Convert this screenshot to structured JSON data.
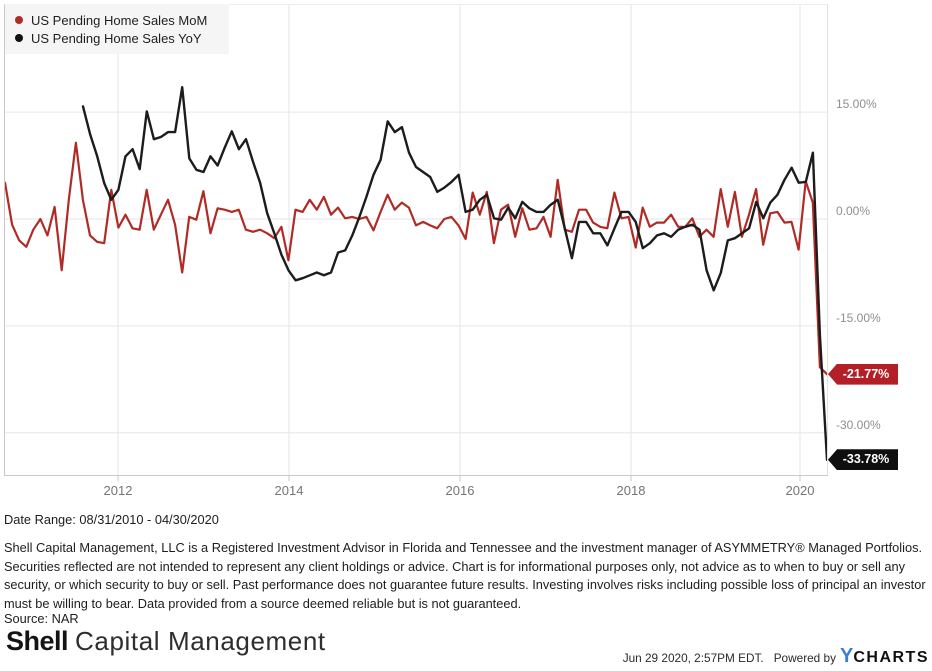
{
  "legend": {
    "items": [
      {
        "label": "US Pending Home Sales MoM",
        "color": "#b02b26"
      },
      {
        "label": "US Pending Home Sales YoY",
        "color": "#111111"
      }
    ]
  },
  "chart_data": {
    "type": "line",
    "title": "",
    "x_ticks": [
      "2012",
      "2014",
      "2016",
      "2018",
      "2020"
    ],
    "y_ticks": [
      "15.00%",
      "0.00%",
      "-15.00%",
      "-30.00%"
    ],
    "y_tick_values": [
      15,
      0,
      -15,
      -30
    ],
    "ylim": [
      -36,
      30
    ],
    "x_range": "08/31/2010 - 04/30/2020",
    "frequency": "monthly",
    "grid": true,
    "legend_position": "top-left",
    "series": [
      {
        "name": "US Pending Home Sales MoM",
        "color": "#b02b26",
        "start": "2010-08",
        "end": "2020-04",
        "values": [
          5.1,
          -0.8,
          -3.0,
          -3.9,
          -1.5,
          0.0,
          -2.3,
          1.7,
          -7.2,
          2.7,
          10.7,
          2.7,
          -2.3,
          -3.2,
          -3.4,
          4.1,
          -1.2,
          0.6,
          -1.3,
          -1.5,
          4.1,
          -1.5,
          0.6,
          2.7,
          -0.8,
          -7.5,
          0.3,
          -0.1,
          3.9,
          -2.0,
          1.5,
          1.3,
          1.0,
          1.3,
          -1.5,
          -1.8,
          -1.5,
          -2.0,
          -2.7,
          -1.1,
          -5.8,
          1.3,
          1.0,
          2.7,
          1.3,
          3.1,
          0.6,
          1.6,
          0.1,
          0.3,
          0.0,
          0.3,
          -1.6,
          1.0,
          3.4,
          1.3,
          2.3,
          1.6,
          -0.9,
          -0.4,
          -0.9,
          -1.3,
          0.0,
          0.3,
          -0.9,
          -2.8,
          3.7,
          0.6,
          3.8,
          -3.4,
          1.3,
          2.0,
          -2.5,
          1.5,
          -1.5,
          -1.3,
          0.3,
          -2.5,
          5.5,
          -1.5,
          -1.8,
          1.3,
          1.3,
          -0.5,
          -1.1,
          -1.3,
          3.7,
          0.1,
          0.3,
          -4.0,
          1.6,
          -1.1,
          -0.5,
          -0.5,
          0.6,
          -1.1,
          -1.1,
          0.1,
          -2.5,
          -1.5,
          -2.5,
          4.2,
          -1.1,
          3.8,
          -2.5,
          0.6,
          4.2,
          -3.6,
          0.8,
          1.0,
          -0.5,
          -0.4,
          -4.3,
          5.3,
          2.3,
          -20.8,
          -21.77
        ]
      },
      {
        "name": "US Pending Home Sales YoY",
        "color": "#1c1c1c",
        "start": "2011-07",
        "end": "2020-04",
        "values": [
          15.8,
          11.9,
          8.8,
          5.0,
          2.7,
          4.1,
          8.8,
          9.8,
          7.0,
          15.1,
          11.2,
          11.5,
          12.2,
          12.2,
          18.5,
          8.5,
          6.9,
          6.6,
          8.8,
          7.5,
          10.0,
          12.3,
          9.8,
          11.2,
          8.0,
          5.1,
          0.8,
          -2.0,
          -5.0,
          -7.2,
          -8.6,
          -8.3,
          -7.9,
          -7.5,
          -7.9,
          -7.5,
          -4.7,
          -4.4,
          -2.3,
          0.3,
          3.1,
          6.2,
          8.3,
          13.7,
          12.2,
          12.9,
          9.3,
          7.3,
          6.6,
          5.9,
          3.8,
          4.4,
          5.2,
          6.2,
          1.0,
          1.3,
          2.7,
          3.4,
          0.1,
          -0.1,
          1.6,
          0.1,
          2.4,
          1.5,
          1.0,
          1.0,
          2.0,
          2.7,
          -1.3,
          -5.5,
          -0.4,
          -0.4,
          -2.0,
          -2.0,
          -3.7,
          -1.3,
          1.0,
          1.0,
          -0.4,
          -4.1,
          -3.4,
          -2.3,
          -2.0,
          -2.5,
          -1.5,
          -1.1,
          -0.8,
          -1.5,
          -7.2,
          -10.0,
          -7.6,
          -3.0,
          -2.7,
          -2.0,
          -1.3,
          2.4,
          0.1,
          2.3,
          3.4,
          5.5,
          7.2,
          5.1,
          5.2,
          9.3,
          -16.3,
          -33.78
        ]
      }
    ],
    "callouts": [
      {
        "label": "-21.77%",
        "value": -21.77,
        "series": "US Pending Home Sales MoM",
        "color": "#b41f27"
      },
      {
        "label": "-33.78%",
        "value": -33.78,
        "series": "US Pending Home Sales YoY",
        "color": "#0f0f0f"
      }
    ]
  },
  "footer": {
    "date_range": "Date Range: 08/31/2010 - 04/30/2020",
    "disclaimer": "Shell Capital Management, LLC is a Registered Investment Advisor in Florida and Tennessee and the investment manager of ASYMMETRY® Managed Portfolios. Securities reflected are not intended to represent any client holdings or advice. Chart is for informational purposes only, not advice as to when to buy or sell any security, or which security to buy or sell. Past performance does not guarantee future results. Investing involves risks including possible loss of principal an investor must be willing to bear. Data provided from a source deemed reliable but is not guaranteed.",
    "source": "Source: NAR",
    "logo": {
      "bold": "Shell",
      "rest": "Capital Management"
    },
    "timestamp": "Jun 29 2020, 2:57PM EDT.",
    "powered_by": "Powered by",
    "ycharts": {
      "y": "Y",
      "charts": "CHARTS",
      "y_color": "#3a7fd5"
    }
  }
}
